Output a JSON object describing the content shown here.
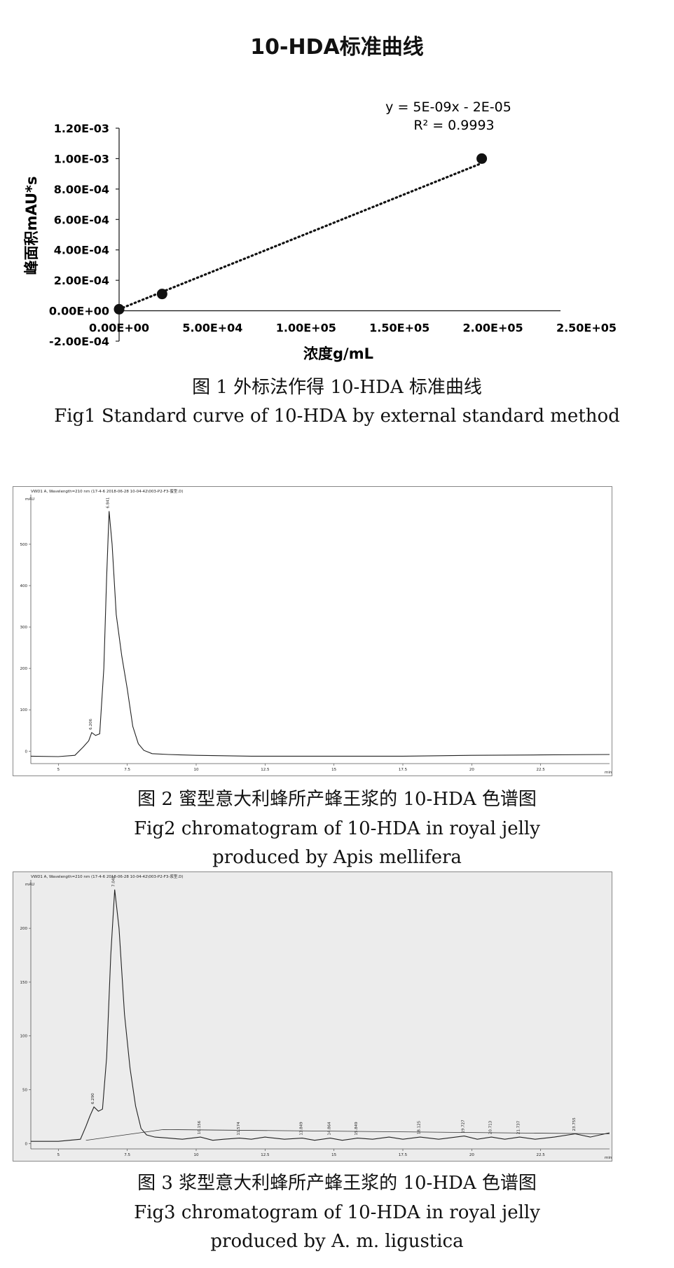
{
  "chart_data": [
    {
      "type": "scatter",
      "title": "10-HDA标准曲线",
      "xlabel": "浓度g/mL",
      "ylabel": "峰面积mAU*s",
      "xlim": [
        0,
        250000
      ],
      "ylim": [
        -0.0002,
        0.0012
      ],
      "x_ticks": [
        "0.00E+00",
        "5.00E+04",
        "1.00E+05",
        "1.50E+05",
        "2.00E+05",
        "2.50E+05"
      ],
      "y_ticks": [
        "-2.00E-04",
        "0.00E+00",
        "2.00E-04",
        "4.00E-04",
        "6.00E-04",
        "8.00E-04",
        "1.00E-03",
        "1.20E-03"
      ],
      "series": [
        {
          "points": [
            {
              "x": 0,
              "y": 1e-05
            },
            {
              "x": 23000,
              "y": 0.00011
            },
            {
              "x": 194000,
              "y": 0.001
            }
          ]
        }
      ],
      "trendline": {
        "slope": 5e-09,
        "intercept": -2e-05,
        "style": "dotted"
      },
      "equation": "y = 5E-09x - 2E-05",
      "r_squared": "R² = 0.9993",
      "grid": false,
      "caption_cn": "图 1  外标法作得 10-HDA 标准曲线",
      "caption_en": "Fig1  Standard curve of 10-HDA by external standard method"
    },
    {
      "type": "line",
      "header": "VWD1 A, Wavelength=210 nm (17-4-6 2018-06-28 10-04-42\\003-P2-F3-蜜型.D)",
      "yunit": "mAU",
      "xunit": "min",
      "xlim": [
        4,
        25
      ],
      "ylim": [
        -30,
        620
      ],
      "x_ticks": [
        "5",
        "7.5",
        "10",
        "12.5",
        "15",
        "17.5",
        "20",
        "22.5"
      ],
      "y_ticks": [
        "0",
        "100",
        "200",
        "300",
        "400",
        "500"
      ],
      "peak_labels": [
        "6.206",
        "6.841"
      ],
      "series": [
        {
          "x": [
            4.0,
            5.0,
            5.6,
            5.9,
            6.1,
            6.21,
            6.35,
            6.5,
            6.65,
            6.75,
            6.841,
            6.95,
            7.1,
            7.3,
            7.5,
            7.7,
            7.9,
            8.1,
            8.4,
            9,
            10,
            12,
            15,
            17.5,
            20,
            22.5,
            25
          ],
          "y": [
            -12,
            -13,
            -10,
            10,
            25,
            45,
            38,
            42,
            200,
            420,
            580,
            500,
            330,
            230,
            150,
            60,
            18,
            2,
            -6,
            -8,
            -10,
            -12,
            -12,
            -12,
            -10,
            -9,
            -8
          ]
        }
      ],
      "caption_cn": "图 2  蜜型意大利蜂所产蜂王浆的 10-HDA 色谱图",
      "caption_en_1": "Fig2  chromatogram of 10-HDA in royal jelly",
      "caption_en_2": "produced by Apis mellifera"
    },
    {
      "type": "line",
      "header": "VWD1 A, Wavelength=210 nm (17-4-6 2018-06-28 10-04-42\\003-P2-F3-浆型.D)",
      "yunit": "mAU",
      "xunit": "min",
      "xlim": [
        4,
        25
      ],
      "ylim": [
        -5,
        245
      ],
      "x_ticks": [
        "5",
        "7.5",
        "10",
        "12.5",
        "15",
        "17.5",
        "20",
        "22.5"
      ],
      "y_ticks": [
        "0",
        "50",
        "100",
        "150",
        "200"
      ],
      "peak_labels": [
        {
          "x": 6.29,
          "label": "6.290"
        },
        {
          "x": 7.042,
          "label": "7.042"
        },
        {
          "x": 10.156,
          "label": "10.156"
        },
        {
          "x": 11.574,
          "label": "11.574"
        },
        {
          "x": 13.849,
          "label": "13.849"
        },
        {
          "x": 14.864,
          "label": "14.864"
        },
        {
          "x": 15.849,
          "label": "15.849"
        },
        {
          "x": 18.125,
          "label": "18.125"
        },
        {
          "x": 19.727,
          "label": "19.727"
        },
        {
          "x": 20.713,
          "label": "20.713"
        },
        {
          "x": 21.737,
          "label": "21.737"
        },
        {
          "x": 23.755,
          "label": "23.755"
        }
      ],
      "series": [
        {
          "x": [
            4.0,
            5.0,
            5.8,
            6.0,
            6.15,
            6.29,
            6.45,
            6.6,
            6.75,
            6.9,
            7.042,
            7.2,
            7.4,
            7.6,
            7.8,
            8.0,
            8.2,
            8.5,
            9.0,
            9.5,
            10.156,
            10.6,
            11.0,
            11.574,
            12.0,
            12.5,
            13.2,
            13.849,
            14.3,
            14.864,
            15.3,
            15.849,
            16.4,
            17.0,
            17.5,
            18.125,
            18.8,
            19.727,
            20.2,
            20.713,
            21.2,
            21.737,
            22.3,
            23.0,
            23.755,
            24.3,
            25.0
          ],
          "y": [
            2,
            2,
            4,
            16,
            26,
            34,
            30,
            32,
            80,
            175,
            236,
            200,
            120,
            70,
            35,
            14,
            8,
            6,
            5,
            4,
            6,
            3,
            4,
            5,
            4,
            6,
            4,
            5,
            3,
            5,
            3,
            5,
            4,
            6,
            4,
            6,
            4,
            7,
            4,
            6,
            4,
            6,
            4,
            6,
            9,
            6,
            10
          ]
        }
      ],
      "caption_cn": "图 3  浆型意大利蜂所产蜂王浆的 10-HDA 色谱图",
      "caption_en_1": "Fig3  chromatogram of 10-HDA in royal jelly",
      "caption_en_2": "produced by A. m. ligustica"
    }
  ]
}
